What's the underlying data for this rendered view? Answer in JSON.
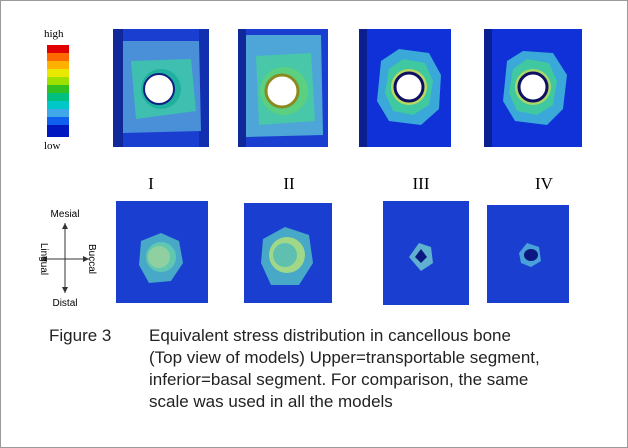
{
  "legend": {
    "high": "high",
    "low": "low"
  },
  "panels": {
    "labels": [
      "I",
      "II",
      "III",
      "IV"
    ]
  },
  "compass": {
    "top": "Mesial",
    "right": "Buccal",
    "left": "Lingual",
    "bottom": "Distal"
  },
  "caption": {
    "label": "Figure 3",
    "lines": [
      "Equivalent stress distribution in cancellous bone",
      "(Top view of models) Upper=transportable segment,",
      "inferior=basal segment. For comparison, the same",
      "scale was used in all the models"
    ]
  }
}
